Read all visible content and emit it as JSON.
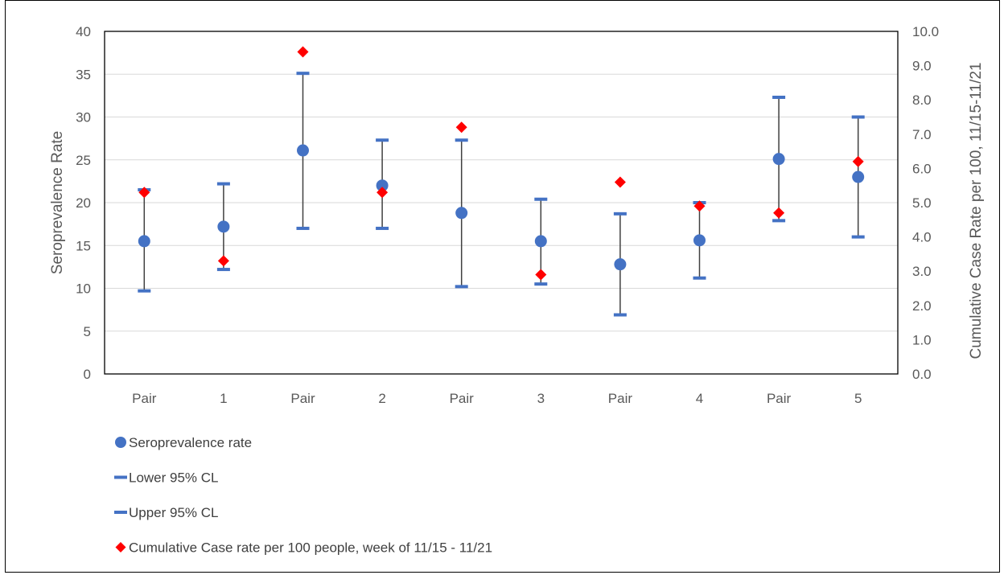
{
  "chart_data": {
    "type": "scatter",
    "categories": [
      "Pair",
      "1",
      "Pair",
      "2",
      "Pair",
      "3",
      "Pair",
      "4",
      "Pair",
      "5"
    ],
    "ylabel": "Seroprevalence Rate",
    "y2label": "Cumulative Case Rate per 100, 11/15-11/21",
    "ylim": [
      0,
      40
    ],
    "y2lim": [
      0,
      10
    ],
    "yticks": [
      "0",
      "5",
      "10",
      "15",
      "20",
      "25",
      "30",
      "35",
      "40"
    ],
    "y2ticks": [
      "0.0",
      "1.0",
      "2.0",
      "3.0",
      "4.0",
      "5.0",
      "6.0",
      "7.0",
      "8.0",
      "9.0",
      "10.0"
    ],
    "grid": true,
    "legend_position": "bottom",
    "series": [
      {
        "name": "Seroprevalence rate",
        "axis": "left",
        "marker": "circle",
        "color": "#4472C4",
        "values": [
          15.5,
          17.2,
          26.1,
          22.0,
          18.8,
          15.5,
          12.8,
          15.6,
          25.1,
          23.0
        ]
      },
      {
        "name": "Lower 95% CL",
        "axis": "left",
        "marker": "dash",
        "color": "#4472C4",
        "values": [
          9.7,
          12.2,
          17.0,
          17.0,
          10.2,
          10.5,
          6.9,
          11.2,
          17.9,
          16.0
        ]
      },
      {
        "name": "Upper 95% CL",
        "axis": "left",
        "marker": "dash",
        "color": "#4472C4",
        "values": [
          21.5,
          22.2,
          35.1,
          27.3,
          27.3,
          20.4,
          18.7,
          20.0,
          32.3,
          30.0
        ]
      },
      {
        "name": "Cumulative Case rate per 100 people, week of 11/15 - 11/21",
        "axis": "right",
        "marker": "diamond",
        "color": "#FF0000",
        "values": [
          5.3,
          3.3,
          9.4,
          5.3,
          7.2,
          2.9,
          5.6,
          4.9,
          4.7,
          6.2
        ]
      }
    ]
  }
}
